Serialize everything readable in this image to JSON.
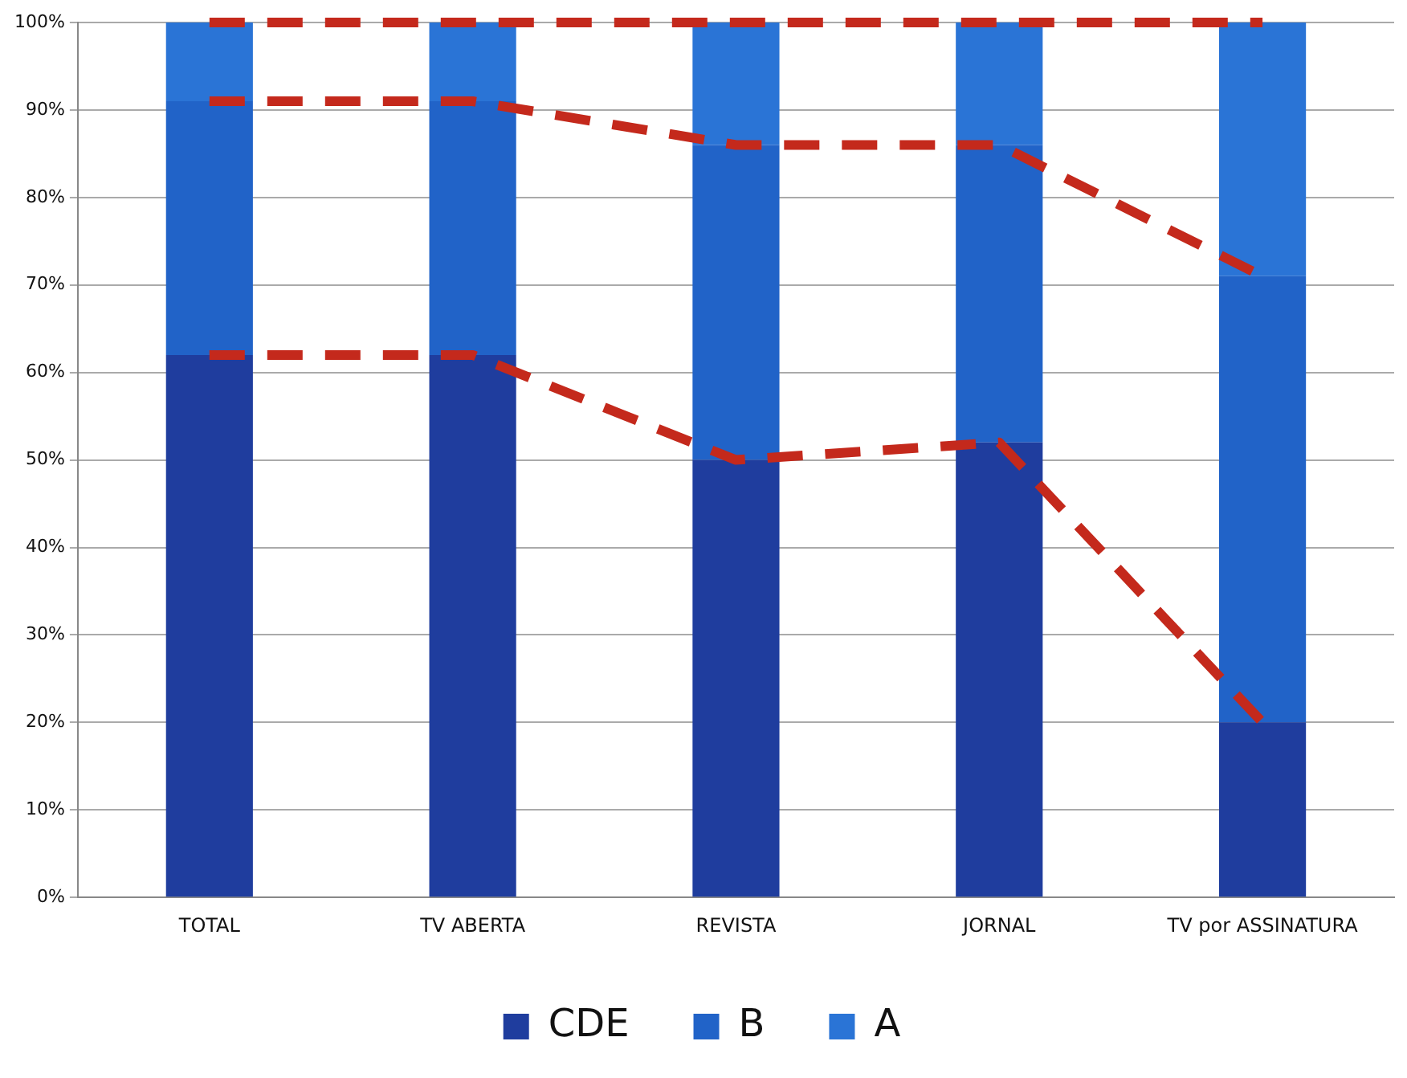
{
  "chart_data": {
    "type": "bar",
    "stacked": true,
    "categories": [
      "TOTAL",
      "TV ABERTA",
      "REVISTA",
      "JORNAL",
      "TV por ASSINATURA"
    ],
    "series": [
      {
        "name": "CDE",
        "color": "#1f3d9e",
        "values": [
          62,
          62,
          50,
          52,
          20
        ]
      },
      {
        "name": "B",
        "color": "#2163c8",
        "values": [
          29,
          29,
          36,
          34,
          51
        ]
      },
      {
        "name": "A",
        "color": "#2a74d6",
        "values": [
          9,
          9,
          14,
          14,
          29
        ]
      },
      {
        "type": "line",
        "color": "#c4291c",
        "line_style": "dashed",
        "marker": "none",
        "values": [
          100,
          100,
          100,
          100,
          100
        ]
      },
      {
        "type": "line",
        "color": "#c4291c",
        "line_style": "dashed",
        "marker": "none",
        "values": [
          91,
          91,
          86,
          86,
          71
        ]
      },
      {
        "type": "line",
        "color": "#c4291c",
        "line_style": "dashed",
        "marker": "none",
        "values": [
          62,
          62,
          50,
          52,
          20
        ]
      }
    ],
    "ylim": [
      0,
      100
    ],
    "yticks": [
      {
        "value": 0,
        "label": "0%"
      },
      {
        "value": 10,
        "label": "10%"
      },
      {
        "value": 20,
        "label": "20%"
      },
      {
        "value": 30,
        "label": "30%"
      },
      {
        "value": 40,
        "label": "40%"
      },
      {
        "value": 50,
        "label": "50%"
      },
      {
        "value": 60,
        "label": "60%"
      },
      {
        "value": 70,
        "label": "70%"
      },
      {
        "value": 80,
        "label": "80%"
      },
      {
        "value": 90,
        "label": "90%"
      },
      {
        "value": 100,
        "label": "100%"
      }
    ],
    "grid": "y",
    "legend": "bottom"
  }
}
